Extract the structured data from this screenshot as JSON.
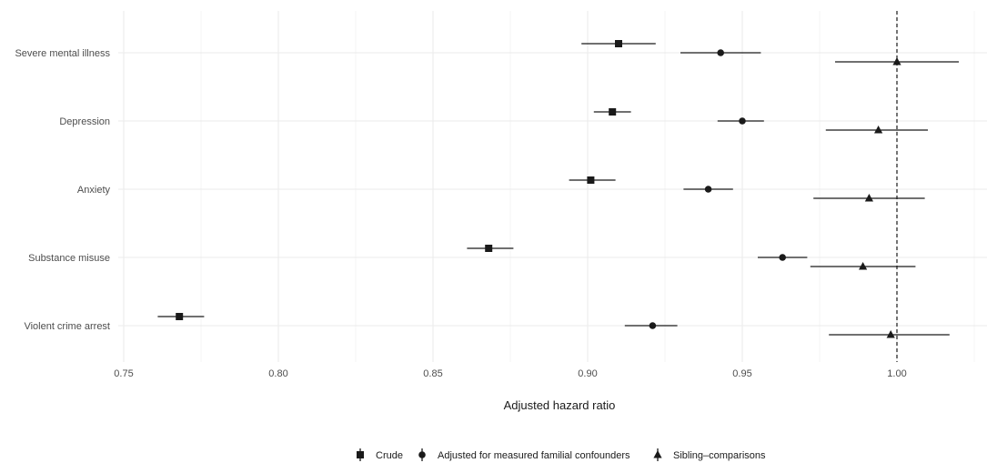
{
  "chart_data": {
    "type": "forest",
    "title": "",
    "xlabel": "Adjusted hazard ratio",
    "ylabel": "",
    "xlim": [
      0.75,
      1.03
    ],
    "x_ticks": [
      0.75,
      0.8,
      0.85,
      0.9,
      0.95,
      1.0
    ],
    "x_tick_labels": [
      "0.75",
      "0.80",
      "0.85",
      "0.90",
      "0.95",
      "1.00"
    ],
    "reference_line": 1.0,
    "grid": true,
    "legend_position": "bottom",
    "categories": [
      "Severe mental illness",
      "Depression",
      "Anxiety",
      "Substance misuse",
      "Violent crime arrest"
    ],
    "series": [
      {
        "name": "Crude",
        "marker": "square",
        "estimates": [
          0.91,
          0.908,
          0.901,
          0.868,
          0.768
        ],
        "lower": [
          0.898,
          0.902,
          0.894,
          0.861,
          0.761
        ],
        "upper": [
          0.922,
          0.914,
          0.909,
          0.876,
          0.776
        ]
      },
      {
        "name": "Adjusted for measured familial confounders",
        "marker": "circle",
        "estimates": [
          0.943,
          0.95,
          0.939,
          0.963,
          0.921
        ],
        "lower": [
          0.93,
          0.942,
          0.931,
          0.955,
          0.912
        ],
        "upper": [
          0.956,
          0.957,
          0.947,
          0.971,
          0.929
        ]
      },
      {
        "name": "Sibling–comparisons",
        "marker": "triangle",
        "estimates": [
          1.0,
          0.994,
          0.991,
          0.989,
          0.998
        ],
        "lower": [
          0.98,
          0.977,
          0.973,
          0.972,
          0.978
        ],
        "upper": [
          1.02,
          1.01,
          1.009,
          1.006,
          1.017
        ]
      }
    ]
  }
}
